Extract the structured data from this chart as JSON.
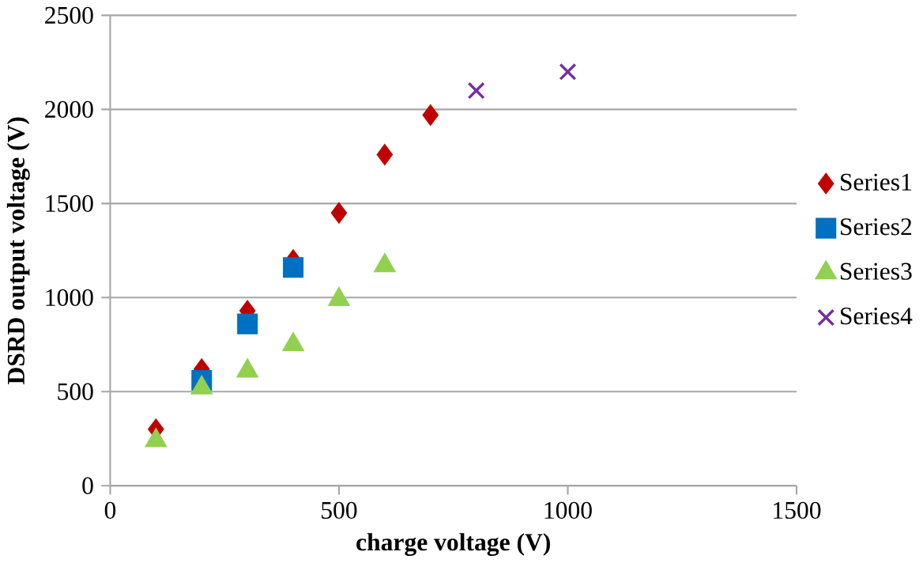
{
  "chart_data": {
    "type": "scatter",
    "xlabel": "charge voltage (V)",
    "ylabel": "DSRD output voltage (V)",
    "xlim": [
      0,
      1500
    ],
    "xticks": [
      0,
      500,
      1000,
      1500
    ],
    "ylim": [
      0,
      2500
    ],
    "yticks": [
      0,
      500,
      1000,
      1500,
      2000,
      2500
    ],
    "grid": "y",
    "legend": "right",
    "series": [
      {
        "name": "Series1",
        "color": "#c00000",
        "marker": "diamond",
        "x": [
          100,
          200,
          300,
          400,
          500,
          600,
          700
        ],
        "values": [
          300,
          620,
          930,
          1200,
          1450,
          1760,
          1970
        ]
      },
      {
        "name": "Series2",
        "color": "#0070c0",
        "marker": "square",
        "x": [
          200,
          300,
          400
        ],
        "values": [
          560,
          860,
          1160
        ]
      },
      {
        "name": "Series3",
        "color": "#92d050",
        "marker": "triangle",
        "x": [
          100,
          200,
          300,
          400,
          500,
          600
        ],
        "values": [
          240,
          520,
          610,
          750,
          990,
          1170
        ]
      },
      {
        "name": "Series4",
        "color": "#7030a0",
        "marker": "cross",
        "x": [
          800,
          1000
        ],
        "values": [
          2100,
          2200
        ]
      }
    ]
  }
}
